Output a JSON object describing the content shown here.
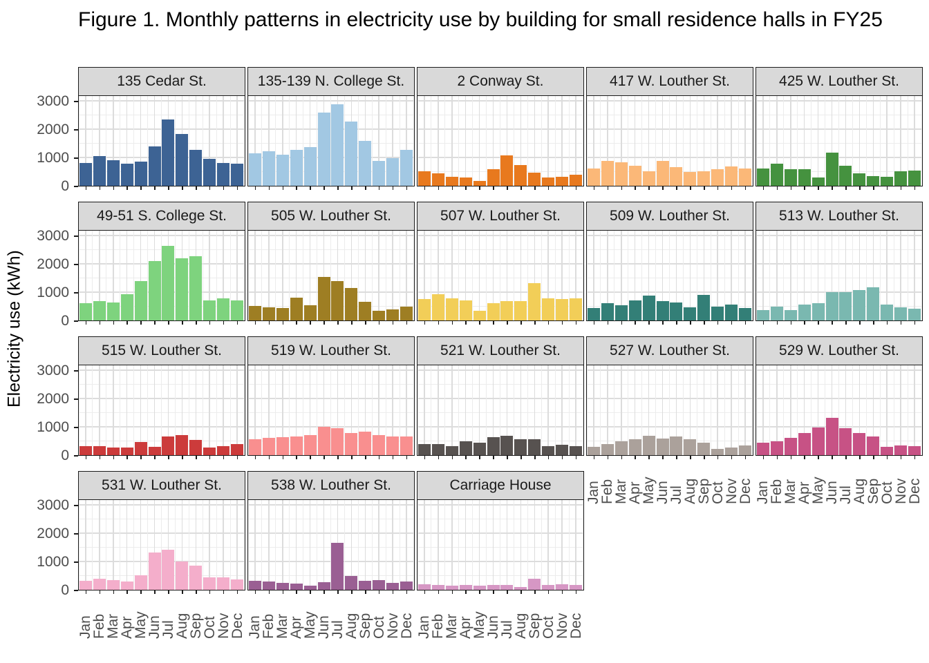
{
  "title": "Figure 1. Monthly patterns in electricity use by building for small residence halls in FY25",
  "y_axis": {
    "label": "Electricity use (kWh)",
    "ticks": [
      "0",
      "1000",
      "2000",
      "3000"
    ],
    "max": 3200
  },
  "x_axis": {
    "ticks": [
      "Jan",
      "Feb",
      "Mar",
      "Apr",
      "May",
      "Jun",
      "Jul",
      "Aug",
      "Sep",
      "Oct",
      "Nov",
      "Dec"
    ]
  },
  "chart_data": {
    "type": "bar",
    "title": "Figure 1. Monthly patterns in electricity use by building for small residence halls in FY25",
    "xlabel": "",
    "ylabel": "Electricity use (kWh)",
    "ylim": [
      0,
      3200
    ],
    "grid": true,
    "legend_position": "none",
    "facet_layout": {
      "columns": 5,
      "rows": 4
    },
    "categories": [
      "Jan",
      "Feb",
      "Mar",
      "Apr",
      "May",
      "Jun",
      "Jul",
      "Aug",
      "Sep",
      "Oct",
      "Nov",
      "Dec"
    ],
    "series": [
      {
        "name": "135 Cedar St.",
        "color": "#3D6394",
        "values": [
          800,
          1050,
          900,
          780,
          860,
          1400,
          2350,
          1840,
          1280,
          950,
          800,
          770
        ]
      },
      {
        "name": "135-139 N. College St.",
        "color": "#A2C8E3",
        "values": [
          1160,
          1220,
          1100,
          1280,
          1380,
          2580,
          2880,
          2260,
          1600,
          880,
          980,
          1260
        ]
      },
      {
        "name": "2 Conway St.",
        "color": "#E8791E",
        "values": [
          520,
          440,
          330,
          300,
          170,
          580,
          1070,
          730,
          460,
          300,
          320,
          400
        ]
      },
      {
        "name": "417 W. Louther St.",
        "color": "#FBB878",
        "values": [
          610,
          880,
          830,
          700,
          520,
          880,
          650,
          500,
          520,
          580,
          680,
          620
        ]
      },
      {
        "name": "425 W. Louther St.",
        "color": "#45923F",
        "values": [
          620,
          790,
          580,
          580,
          290,
          1180,
          700,
          430,
          350,
          310,
          510,
          530
        ]
      },
      {
        "name": "49-51 S. College St.",
        "color": "#7ED37E",
        "values": [
          620,
          680,
          640,
          940,
          1390,
          2110,
          2650,
          2200,
          2270,
          700,
          790,
          720
        ]
      },
      {
        "name": "505 W. Louther St.",
        "color": "#9E7E23",
        "values": [
          510,
          470,
          430,
          800,
          530,
          1550,
          1400,
          1150,
          660,
          350,
          390,
          490
        ]
      },
      {
        "name": "507 W. Louther St.",
        "color": "#F2CE58",
        "values": [
          750,
          930,
          770,
          700,
          350,
          600,
          690,
          690,
          1320,
          790,
          760,
          790
        ]
      },
      {
        "name": "509 W. Louther St.",
        "color": "#337F77",
        "values": [
          430,
          610,
          530,
          700,
          870,
          680,
          640,
          460,
          910,
          500,
          550,
          430
        ]
      },
      {
        "name": "513 W. Louther St.",
        "color": "#7AB8B0",
        "values": [
          370,
          490,
          370,
          570,
          610,
          990,
          990,
          1070,
          1180,
          570,
          470,
          420
        ]
      },
      {
        "name": "515 W. Louther St.",
        "color": "#CC3B3B",
        "values": [
          310,
          330,
          270,
          280,
          470,
          290,
          650,
          700,
          530,
          280,
          310,
          380
        ]
      },
      {
        "name": "519 W. Louther St.",
        "color": "#F98F8F",
        "values": [
          550,
          610,
          630,
          670,
          720,
          1000,
          950,
          770,
          830,
          720,
          650,
          670
        ]
      },
      {
        "name": "521 W. Louther St.",
        "color": "#575250",
        "values": [
          400,
          390,
          310,
          490,
          450,
          630,
          680,
          570,
          570,
          310,
          370,
          310
        ]
      },
      {
        "name": "527 W. Louther St.",
        "color": "#ABA19B",
        "values": [
          290,
          390,
          490,
          550,
          690,
          590,
          670,
          550,
          430,
          210,
          270,
          340
        ]
      },
      {
        "name": "529 W. Louther St.",
        "color": "#C75285",
        "values": [
          450,
          500,
          620,
          770,
          980,
          1320,
          960,
          790,
          670,
          290,
          350,
          330
        ]
      },
      {
        "name": "531 W. Louther St.",
        "color": "#F4AECB",
        "values": [
          330,
          400,
          350,
          290,
          520,
          1330,
          1420,
          1000,
          860,
          450,
          440,
          370
        ]
      },
      {
        "name": "538 W. Louther St.",
        "color": "#9A5F93",
        "values": [
          320,
          300,
          250,
          210,
          150,
          270,
          1650,
          480,
          320,
          350,
          240,
          300
        ]
      },
      {
        "name": "Carriage House",
        "color": "#D697C4",
        "values": [
          200,
          170,
          140,
          160,
          140,
          160,
          180,
          100,
          380,
          180,
          190,
          180
        ]
      }
    ]
  },
  "style": {
    "strip_background": "#D9D9D9",
    "panel_border": "#1A1A1A",
    "grid_major": "#DCDCDC",
    "grid_minor": "#ECECEC",
    "tick_text": "#4D4D4D"
  }
}
